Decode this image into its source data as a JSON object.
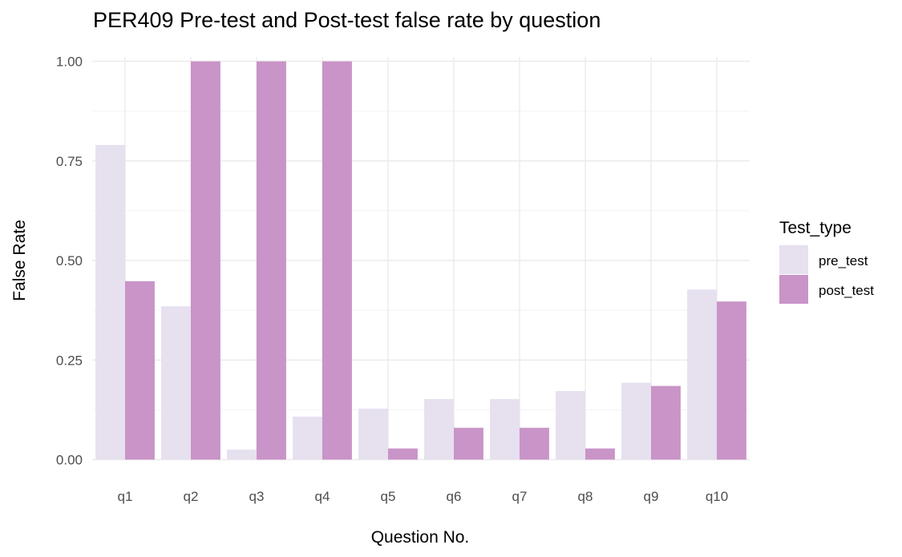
{
  "chart_data": {
    "type": "bar",
    "title": "PER409 Pre-test and Post-test false rate by question",
    "xlabel": "Question No.",
    "ylabel": "False Rate",
    "categories": [
      "q1",
      "q2",
      "q3",
      "q4",
      "q5",
      "q6",
      "q7",
      "q8",
      "q9",
      "q10"
    ],
    "series": [
      {
        "name": "pre_test",
        "color": "#e6e0ef",
        "values": [
          0.79,
          0.385,
          0.025,
          0.108,
          0.128,
          0.152,
          0.152,
          0.172,
          0.193,
          0.427
        ]
      },
      {
        "name": "post_test",
        "color": "#c994c7",
        "values": [
          0.448,
          1.0,
          1.0,
          1.0,
          0.028,
          0.08,
          0.08,
          0.028,
          0.185,
          0.397
        ]
      }
    ],
    "ylim": [
      0,
      1.0
    ],
    "yticks": [
      "0.00",
      "0.25",
      "0.50",
      "0.75",
      "1.00"
    ],
    "grid": true,
    "legend": {
      "title": "Test_type",
      "position": "right"
    }
  }
}
